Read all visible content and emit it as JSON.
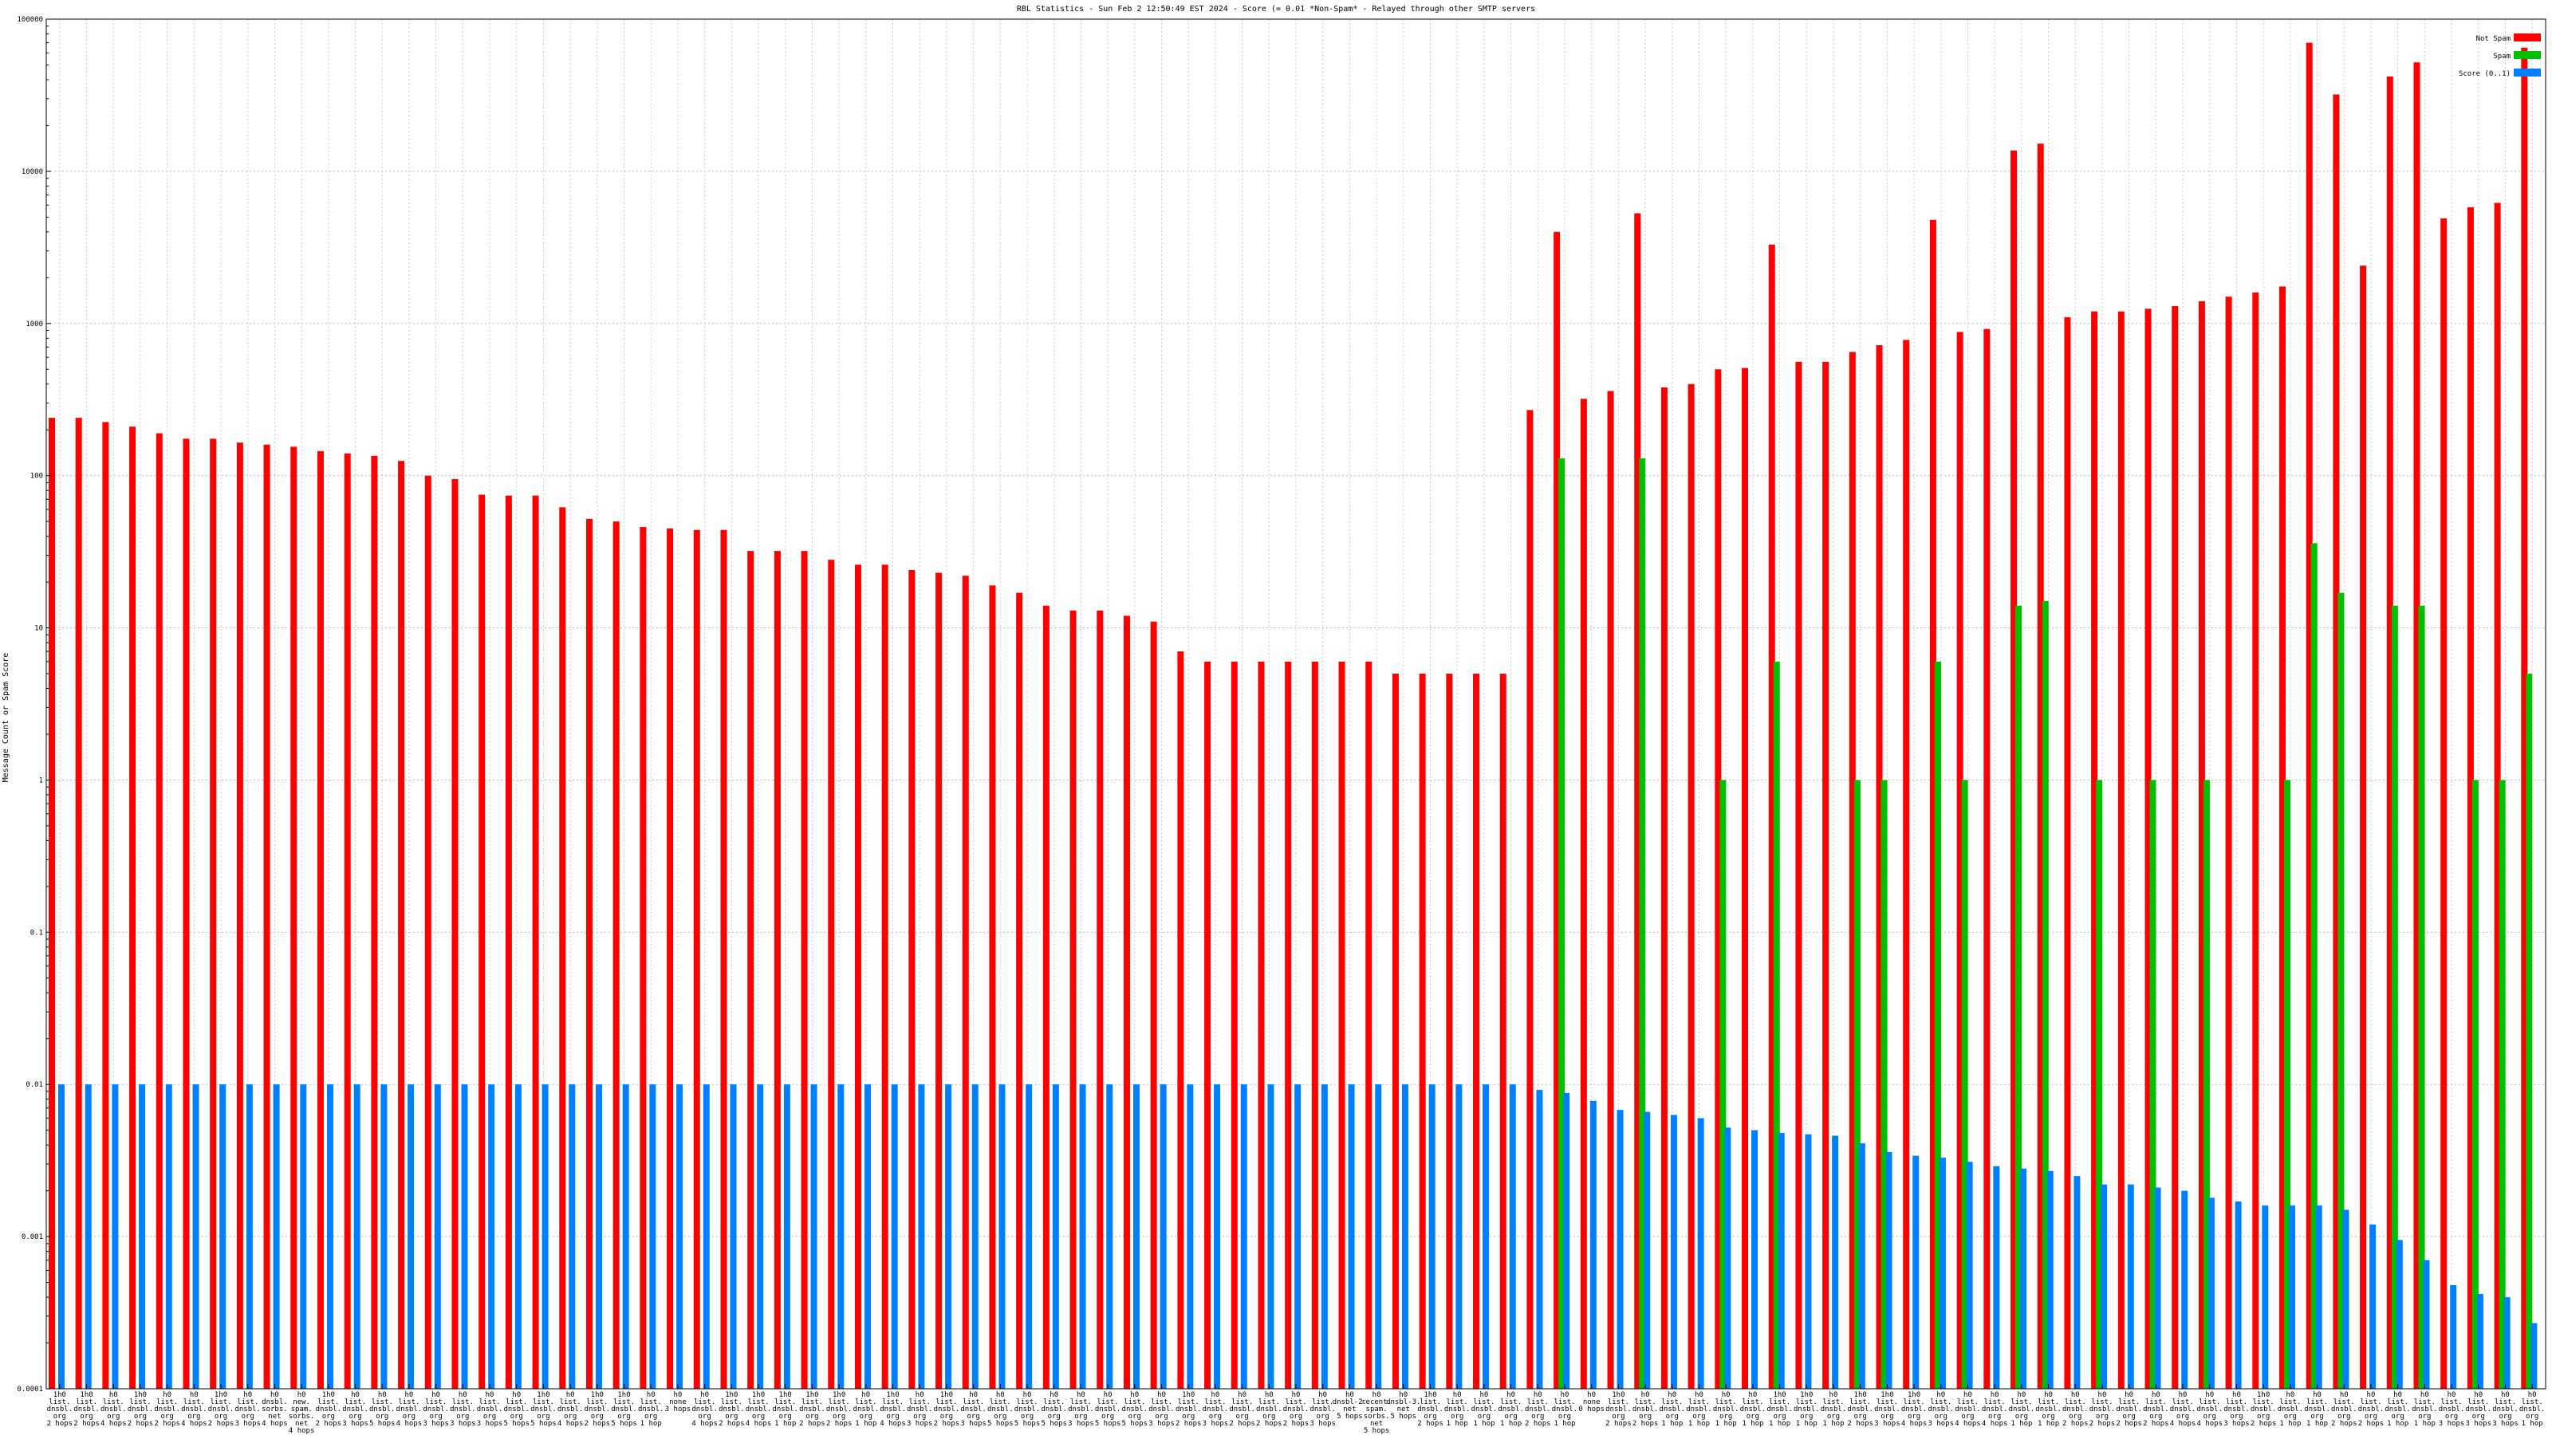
{
  "chart_data": {
    "type": "bar",
    "title": "RBL Statistics - Sun Feb  2 12:50:49 EST 2024 - Score (= 0.01 *Non-Spam* - Relayed through other SMTP servers",
    "ylabel": "Message Count or Spam Score",
    "xlabel": "",
    "yscale": "log",
    "ylim": [
      0.0001,
      100000
    ],
    "yticks": [
      "0.0001",
      "0.001",
      "0.01",
      "0.1",
      "1",
      "10",
      "100",
      "1000",
      "10000",
      "100000"
    ],
    "grid": true,
    "legend_position": "top-right",
    "colors": {
      "not_spam": "#ff0000",
      "spam": "#00c000",
      "score": "#0080ff"
    },
    "series": [
      {
        "name": "Not Spam",
        "values": [
          240,
          240,
          225,
          210,
          190,
          175,
          175,
          165,
          160,
          155,
          145,
          140,
          135,
          125,
          100,
          95,
          75,
          74,
          74,
          62,
          52,
          50,
          46,
          45,
          44,
          44,
          32,
          32,
          32,
          28,
          26,
          26,
          24,
          23,
          22,
          19,
          17,
          14,
          13,
          13,
          12,
          11,
          7,
          6,
          6,
          6,
          6,
          6,
          6,
          6,
          5,
          5,
          5,
          5,
          5,
          270,
          4000,
          320,
          360,
          5300,
          380,
          400,
          500,
          510,
          3300,
          560,
          560,
          650,
          720,
          780,
          4800,
          880,
          920,
          13700,
          15200,
          1100,
          1200,
          1200,
          1250,
          1300,
          1400,
          1500,
          1600,
          1750,
          70000,
          32000,
          2400,
          42000,
          52000,
          4900,
          5800,
          6200,
          65000
        ]
      },
      {
        "name": "Spam",
        "values": [
          0,
          0,
          0,
          0,
          0,
          0,
          0,
          0,
          0,
          0,
          0,
          0,
          0,
          0,
          0,
          0,
          0,
          0,
          0,
          0,
          0,
          0,
          0,
          0,
          0,
          0,
          0,
          0,
          0,
          0,
          0,
          0,
          0,
          0,
          0,
          0,
          0,
          0,
          0,
          0,
          0,
          0,
          0,
          0,
          0,
          0,
          0,
          0,
          0,
          0,
          0,
          0,
          0,
          0,
          0,
          0,
          130,
          0,
          0,
          130,
          0,
          0,
          1,
          0,
          6,
          0,
          0,
          1,
          1,
          0,
          6,
          1,
          0,
          14,
          15,
          0,
          1,
          0,
          1,
          0,
          1,
          0,
          0,
          1,
          36,
          17,
          0,
          14,
          14,
          0,
          1,
          1,
          5
        ]
      },
      {
        "name": "Score (0..1)",
        "values": [
          0.01,
          0.01,
          0.01,
          0.01,
          0.01,
          0.01,
          0.01,
          0.01,
          0.01,
          0.01,
          0.01,
          0.01,
          0.01,
          0.01,
          0.01,
          0.01,
          0.01,
          0.01,
          0.01,
          0.01,
          0.01,
          0.01,
          0.01,
          0.01,
          0.01,
          0.01,
          0.01,
          0.01,
          0.01,
          0.01,
          0.01,
          0.01,
          0.01,
          0.01,
          0.01,
          0.01,
          0.01,
          0.01,
          0.01,
          0.01,
          0.01,
          0.01,
          0.01,
          0.01,
          0.01,
          0.01,
          0.01,
          0.01,
          0.01,
          0.01,
          0.01,
          0.01,
          0.01,
          0.01,
          0.01,
          0.0092,
          0.0088,
          0.0078,
          0.0068,
          0.0066,
          0.0063,
          0.006,
          0.0052,
          0.005,
          0.0048,
          0.0047,
          0.0046,
          0.0041,
          0.0036,
          0.0034,
          0.0033,
          0.0031,
          0.0029,
          0.0028,
          0.0027,
          0.0025,
          0.0022,
          0.0022,
          0.0021,
          0.002,
          0.0018,
          0.0017,
          0.0016,
          0.0016,
          0.0016,
          0.0015,
          0.0012,
          0.00095,
          0.0007,
          0.00048,
          0.00042,
          0.0004,
          0.00027
        ]
      }
    ],
    "categories": [
      "1h0\nlist.\ndnsbl.\norg\n2 hops",
      "1h0\nlist.\ndnsbl.\norg\n2 hops",
      "h0\nlist.\ndnsbl.\norg\n4 hops",
      "1h0\nlist.\ndnsbl.\norg\n2 hops",
      "h0\nlist.\ndnsbl.\norg\n2 hops",
      "h0\nlist.\ndnsbl.\norg\n4 hops",
      "1h0\nlist.\ndnsbl.\norg\n2 hops",
      "h0\nlist.\ndnsbl.\norg\n3 hops",
      "h0\ndnsbl.\nsorbs.\nnet\n4 hops",
      "h0\nnew.\nspam.\nsorbs.\nnet\n4 hops",
      "1h0\nlist.\ndnsbl.\norg\n2 hops",
      "h0\nlist.\ndnsbl.\norg\n3 hops",
      "h0\nlist.\ndnsbl.\norg\n5 hops",
      "h0\nlist.\ndnsbl.\norg\n4 hops",
      "h0\nlist.\ndnsbl.\norg\n3 hops",
      "h0\nlist.\ndnsbl.\norg\n3 hops",
      "h0\nlist.\ndnsbl.\norg\n3 hops",
      "h0\nlist.\ndnsbl.\norg\n5 hops",
      "1h0\nlist.\ndnsbl.\norg\n5 hops",
      "h0\nlist.\ndnsbl.\norg\n4 hops",
      "1h0\nlist.\ndnsbl.\norg\n2 hops",
      "1h0\nlist.\ndnsbl.\norg\n5 hops",
      "h0\nlist.\ndnsbl.\norg\n1 hop",
      "h0\nnone\n3 hops",
      "h0\nlist.\ndnsbl.\norg\n4 hops",
      "1h0\nlist.\ndnsbl.\norg\n2 hops",
      "1h0\nlist.\ndnsbl.\norg\n4 hops",
      "1h0\nlist.\ndnsbl.\norg\n1 hop",
      "1h0\nlist.\ndnsbl.\norg\n2 hops",
      "1h0\nlist.\ndnsbl.\norg\n2 hops",
      "h0\nlist.\ndnsbl.\norg\n1 hop",
      "1h0\nlist.\ndnsbl.\norg\n4 hops",
      "h0\nlist.\ndnsbl.\norg\n3 hops",
      "1h0\nlist.\ndnsbl.\norg\n2 hops",
      "h0\nlist.\ndnsbl.\norg\n3 hops",
      "h0\nlist.\ndnsbl.\norg\n5 hops",
      "h0\nlist.\ndnsbl.\norg\n5 hops",
      "h0\nlist.\ndnsbl.\norg\n5 hops",
      "h0\nlist.\ndnsbl.\norg\n3 hops",
      "h0\nlist.\ndnsbl.\norg\n5 hops",
      "h0\nlist.\ndnsbl.\norg\n5 hops",
      "h0\nlist.\ndnsbl.\norg\n3 hops",
      "1h0\nlist.\ndnsbl.\norg\n2 hops",
      "h0\nlist.\ndnsbl.\norg\n3 hops",
      "h0\nlist.\ndnsbl.\norg\n2 hops",
      "h0\nlist.\ndnsbl.\norg\n2 hops",
      "h0\nlist.\ndnsbl.\norg\n2 hops",
      "h0\nlist.\ndnsbl.\norg\n3 hops",
      "h0\ndnsbl-2.\nnet\n5 hops",
      "h0\nrecent.\nspam.\nsorbs.\nnet\n5 hops",
      "h0\ndnsbl-3.\nnet\n5 hops",
      "1h0\nlist.\ndnsbl.\norg\n2 hops",
      "h0\nlist.\ndnsbl.\norg\n1 hop",
      "h0\nlist.\ndnsbl.\norg\n1 hop",
      "h0\nlist.\ndnsbl.\norg\n1 hop",
      "h0\nlist.\ndnsbl.\norg\n2 hops",
      "h0\nlist.\ndnsbl.\norg\n1 hop",
      "h0\nnone\n0 hops",
      "1h0\nlist.\ndnsbl.\norg\n2 hops",
      "h0\nlist.\ndnsbl.\norg\n2 hops",
      "h0\nlist.\ndnsbl.\norg\n1 hop",
      "h0\nlist.\ndnsbl.\norg\n1 hop",
      "h0\nlist.\ndnsbl.\norg\n1 hop",
      "h0\nlist.\ndnsbl.\norg\n1 hop",
      "1h0\nlist.\ndnsbl.\norg\n1 hop",
      "1h0\nlist.\ndnsbl.\norg\n1 hop",
      "h0\nlist.\ndnsbl.\norg\n1 hop",
      "1h0\nlist.\ndnsbl.\norg\n2 hops",
      "1h0\nlist.\ndnsbl.\norg\n3 hops",
      "1h0\nlist.\ndnsbl.\norg\n4 hops",
      "h0\nlist.\ndnsbl.\norg\n3 hops",
      "h0\nlist.\ndnsbl.\norg\n4 hops",
      "h0\nlist.\ndnsbl.\norg\n4 hops",
      "h0\nlist.\ndnsbl.\norg\n1 hop",
      "h0\nlist.\ndnsbl.\norg\n1 hop",
      "h0\nlist.\ndnsbl.\norg\n2 hops",
      "h0\nlist.\ndnsbl.\norg\n2 hops",
      "h0\nlist.\ndnsbl.\norg\n2 hops",
      "h0\nlist.\ndnsbl.\norg\n2 hops",
      "h0\nlist.\ndnsbl.\norg\n4 hops",
      "h0\nlist.\ndnsbl.\norg\n4 hops",
      "h0\nlist.\ndnsbl.\norg\n3 hops",
      "1h0\nlist.\ndnsbl.\norg\n2 hops",
      "h0\nlist.\ndnsbl.\norg\n1 hop",
      "h0\nlist.\ndnsbl.\norg\n1 hop",
      "h0\nlist.\ndnsbl.\norg\n2 hops",
      "h0\nlist.\ndnsbl.\norg\n2 hops",
      "h0\nlist.\ndnsbl.\norg\n1 hop",
      "h0\nlist.\ndnsbl.\norg\n1 hop",
      "h0\nlist.\ndnsbl.\norg\n3 hops",
      "h0\nlist.\ndnsbl.\norg\n3 hops",
      "h0\nlist.\ndnsbl.\norg\n3 hops",
      "h0\nlist.\ndnsbl.\norg\n1 hop"
    ]
  },
  "legend": [
    {
      "label": "Not Spam",
      "color": "#ff0000"
    },
    {
      "label": "Spam",
      "color": "#00c000"
    },
    {
      "label": "Score (0..1)",
      "color": "#0080ff"
    }
  ]
}
